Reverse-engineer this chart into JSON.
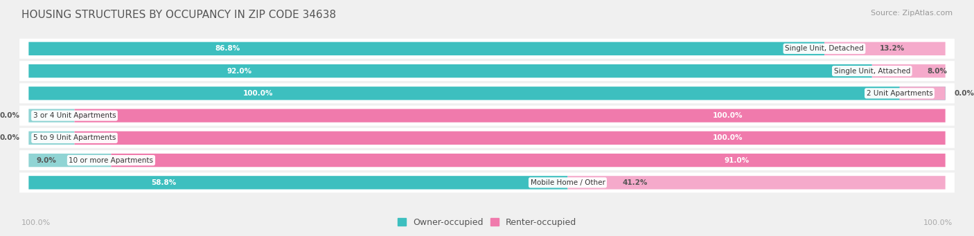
{
  "title": "HOUSING STRUCTURES BY OCCUPANCY IN ZIP CODE 34638",
  "source": "Source: ZipAtlas.com",
  "categories": [
    "Single Unit, Detached",
    "Single Unit, Attached",
    "2 Unit Apartments",
    "3 or 4 Unit Apartments",
    "5 to 9 Unit Apartments",
    "10 or more Apartments",
    "Mobile Home / Other"
  ],
  "owner_pct": [
    86.8,
    92.0,
    100.0,
    0.0,
    0.0,
    9.0,
    58.8
  ],
  "renter_pct": [
    13.2,
    8.0,
    0.0,
    100.0,
    100.0,
    91.0,
    41.2
  ],
  "owner_color": "#3DBFBF",
  "renter_color": "#F07AAC",
  "owner_color_light": "#90D4D4",
  "renter_color_light": "#F5AACB",
  "bg_color": "#F0F0F0",
  "bar_bg_color": "#FFFFFF",
  "title_color": "#555555",
  "source_color": "#999999",
  "axis_label_color": "#AAAAAA",
  "figsize": [
    14.06,
    3.41
  ],
  "dpi": 100
}
